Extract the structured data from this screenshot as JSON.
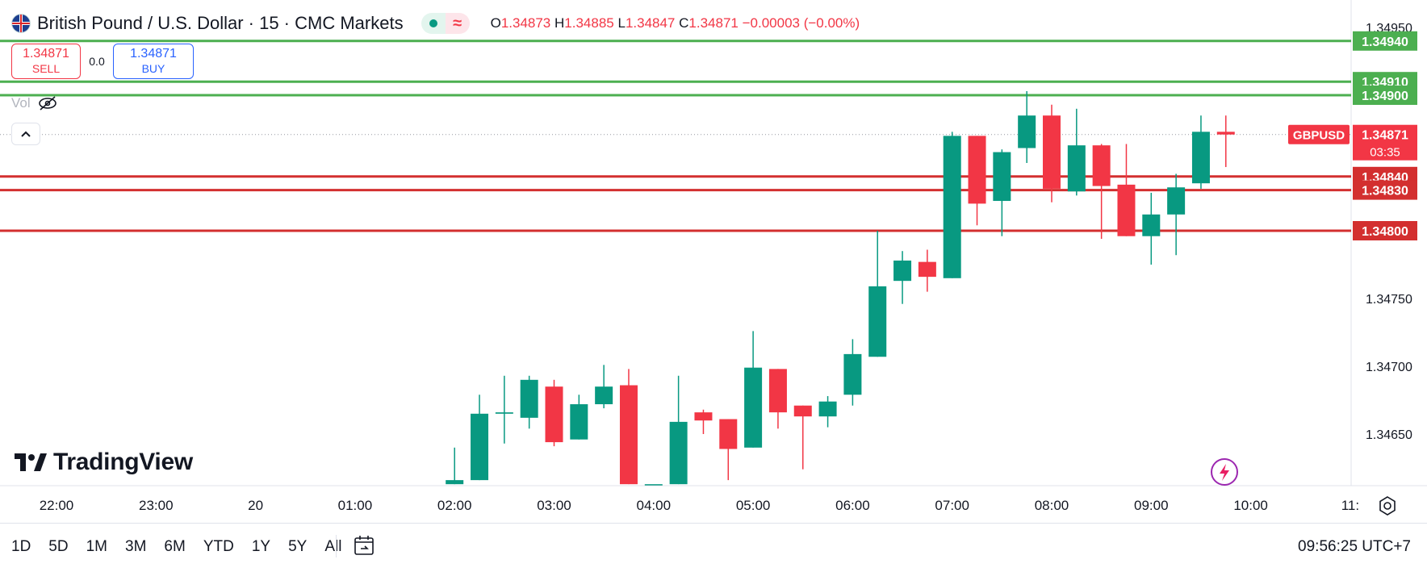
{
  "header": {
    "title": "British Pound / U.S. Dollar · 15 · CMC Markets",
    "ohlc": {
      "o_label": "O",
      "o_value": "1.34873",
      "h_label": "H",
      "h_value": "1.34885",
      "l_label": "L",
      "l_value": "1.34847",
      "c_label": "C",
      "c_value": "1.34871",
      "change": "−0.00003 (−0.00%)"
    },
    "status_icon": "market-open-dot",
    "delay_icon": "wave-icon"
  },
  "trade": {
    "sell_price": "1.34871",
    "sell_label": "SELL",
    "spread": "0.0",
    "buy_price": "1.34871",
    "buy_label": "BUY"
  },
  "volume_label": "Vol",
  "logo_text": "TradingView",
  "bottom": {
    "ranges": [
      "1D",
      "5D",
      "1M",
      "3M",
      "6M",
      "YTD",
      "1Y",
      "5Y",
      "All"
    ],
    "clock": "09:56:25 UTC+7"
  },
  "colors": {
    "up": "#089981",
    "down": "#f23645",
    "resistance": "#4caf50",
    "support": "#d32f2f",
    "accent": "#2962ff"
  },
  "chart_data": {
    "type": "candlestick",
    "symbol": "GBPUSD",
    "timeframe": "15",
    "ylim": [
      1.34613,
      1.34953
    ],
    "y_ticks": [
      "1.34650",
      "1.34700",
      "1.34750",
      "1.34950"
    ],
    "x_ticks": [
      "22:00",
      "23:00",
      "20",
      "01:00",
      "02:00",
      "03:00",
      "04:00",
      "05:00",
      "06:00",
      "07:00",
      "08:00",
      "09:00",
      "10:00",
      "11:"
    ],
    "x_tick_hours": [
      22,
      23,
      24,
      25,
      26,
      27,
      28,
      29,
      30,
      31,
      32,
      33,
      34,
      35
    ],
    "candles": [
      {
        "t": 26.0,
        "o": 1.34613,
        "h": 1.3464,
        "l": 1.34613,
        "c": 1.34616
      },
      {
        "t": 26.25,
        "o": 1.34616,
        "h": 1.34679,
        "l": 1.34616,
        "c": 1.34665
      },
      {
        "t": 26.5,
        "o": 1.34665,
        "h": 1.34693,
        "l": 1.34643,
        "c": 1.34666
      },
      {
        "t": 26.75,
        "o": 1.34662,
        "h": 1.34693,
        "l": 1.34654,
        "c": 1.3469
      },
      {
        "t": 27.0,
        "o": 1.34685,
        "h": 1.3469,
        "l": 1.34641,
        "c": 1.34644
      },
      {
        "t": 27.25,
        "o": 1.34646,
        "h": 1.34679,
        "l": 1.34646,
        "c": 1.34672
      },
      {
        "t": 27.5,
        "o": 1.34672,
        "h": 1.34701,
        "l": 1.34669,
        "c": 1.34685
      },
      {
        "t": 27.75,
        "o": 1.34686,
        "h": 1.34698,
        "l": 1.34613,
        "c": 1.34613
      },
      {
        "t": 28.0,
        "o": 1.34613,
        "h": 1.34613,
        "l": 1.34613,
        "c": 1.34613
      },
      {
        "t": 28.25,
        "o": 1.34613,
        "h": 1.34693,
        "l": 1.34613,
        "c": 1.34659
      },
      {
        "t": 28.5,
        "o": 1.34666,
        "h": 1.34668,
        "l": 1.3465,
        "c": 1.3466
      },
      {
        "t": 28.75,
        "o": 1.34661,
        "h": 1.34661,
        "l": 1.34616,
        "c": 1.34639
      },
      {
        "t": 29.0,
        "o": 1.3464,
        "h": 1.34726,
        "l": 1.3464,
        "c": 1.34699
      },
      {
        "t": 29.25,
        "o": 1.34698,
        "h": 1.34698,
        "l": 1.34654,
        "c": 1.34666
      },
      {
        "t": 29.5,
        "o": 1.34671,
        "h": 1.34671,
        "l": 1.34624,
        "c": 1.34663
      },
      {
        "t": 29.75,
        "o": 1.34663,
        "h": 1.34678,
        "l": 1.34655,
        "c": 1.34674
      },
      {
        "t": 30.0,
        "o": 1.34679,
        "h": 1.3472,
        "l": 1.34671,
        "c": 1.34709
      },
      {
        "t": 30.25,
        "o": 1.34707,
        "h": 1.348,
        "l": 1.34707,
        "c": 1.34759
      },
      {
        "t": 30.5,
        "o": 1.34763,
        "h": 1.34785,
        "l": 1.34746,
        "c": 1.34778
      },
      {
        "t": 30.75,
        "o": 1.34777,
        "h": 1.34786,
        "l": 1.34755,
        "c": 1.34766
      },
      {
        "t": 31.0,
        "o": 1.34765,
        "h": 1.34873,
        "l": 1.34765,
        "c": 1.3487
      },
      {
        "t": 31.25,
        "o": 1.3487,
        "h": 1.3487,
        "l": 1.34804,
        "c": 1.3482
      },
      {
        "t": 31.5,
        "o": 1.34822,
        "h": 1.3486,
        "l": 1.34796,
        "c": 1.34858
      },
      {
        "t": 31.75,
        "o": 1.34861,
        "h": 1.34903,
        "l": 1.3485,
        "c": 1.34885
      },
      {
        "t": 32.0,
        "o": 1.34885,
        "h": 1.34893,
        "l": 1.34821,
        "c": 1.34831
      },
      {
        "t": 32.25,
        "o": 1.34829,
        "h": 1.3489,
        "l": 1.34826,
        "c": 1.34863
      },
      {
        "t": 32.5,
        "o": 1.34863,
        "h": 1.34864,
        "l": 1.34794,
        "c": 1.34833
      },
      {
        "t": 32.75,
        "o": 1.34834,
        "h": 1.34864,
        "l": 1.34796,
        "c": 1.34796
      },
      {
        "t": 33.0,
        "o": 1.34796,
        "h": 1.34828,
        "l": 1.34775,
        "c": 1.34812
      },
      {
        "t": 33.25,
        "o": 1.34812,
        "h": 1.34842,
        "l": 1.34782,
        "c": 1.34832
      },
      {
        "t": 33.5,
        "o": 1.34835,
        "h": 1.34885,
        "l": 1.34831,
        "c": 1.34873
      },
      {
        "t": 33.75,
        "o": 1.34873,
        "h": 1.34885,
        "l": 1.34847,
        "c": 1.34871
      }
    ],
    "levels": [
      {
        "value": 1.3494,
        "label": "1.34940",
        "kind": "resistance"
      },
      {
        "value": 1.3491,
        "label": "1.34910",
        "kind": "resistance"
      },
      {
        "value": 1.349,
        "label": "1.34900",
        "kind": "resistance"
      },
      {
        "value": 1.3484,
        "label": "1.34840",
        "kind": "support"
      },
      {
        "value": 1.3483,
        "label": "1.34830",
        "kind": "support"
      },
      {
        "value": 1.348,
        "label": "1.34800",
        "kind": "support"
      }
    ],
    "current_price": {
      "value": 1.34871,
      "symbol_tag": "GBPUSD",
      "label": "1.34871",
      "countdown": "03:35"
    }
  }
}
